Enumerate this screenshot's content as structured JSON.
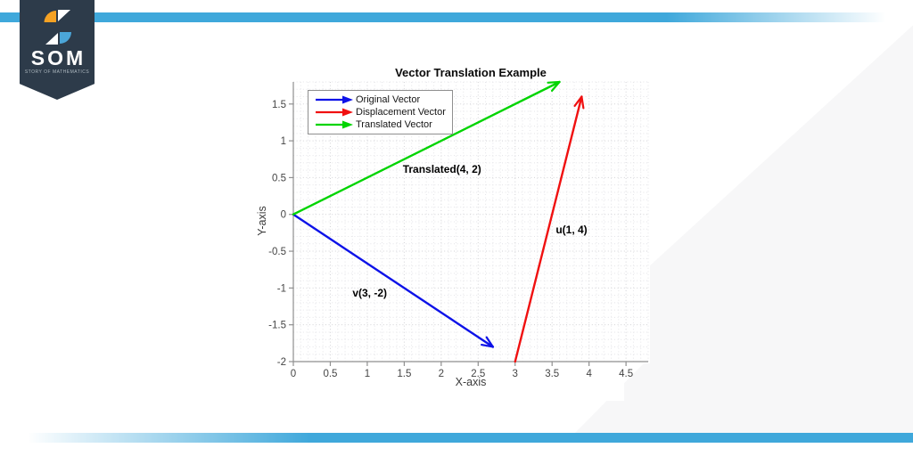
{
  "branding": {
    "site_name": "SOM",
    "tagline": "STORY OF MATHEMATICS",
    "colors": {
      "banner": "#2d3b4a",
      "pinwheel_orange": "#f5a224",
      "pinwheel_blue": "#4ba6d9",
      "stripe_blue": "#3fa8db",
      "background_accent": "#f7f7f8"
    }
  },
  "chart_data": {
    "type": "quiver",
    "title": "Vector Translation Example",
    "xlabel": "X-axis",
    "ylabel": "Y-axis",
    "xlim": [
      0,
      4.8
    ],
    "ylim": [
      -2,
      1.8
    ],
    "xticks": [
      "0",
      "0.5",
      "1",
      "1.5",
      "2",
      "2.5",
      "3",
      "3.5",
      "4",
      "4.5"
    ],
    "yticks": [
      "-2",
      "-1.5",
      "-1",
      "-0.5",
      "0",
      "0.5",
      "1",
      "1.5"
    ],
    "grid": {
      "style": "dotted",
      "minor_step": 0.1,
      "major_step": 0.5,
      "minor_color": "#e4e4e8",
      "major_color": "#d2d2d6"
    },
    "axis_color": "#8f8f8f",
    "tick_label_color": "#454545",
    "arrow_draw_scale": 0.9,
    "vectors": [
      {
        "name": "Original Vector",
        "color": "#0d12e8",
        "origin": [
          0,
          0
        ],
        "components": [
          3,
          -2
        ],
        "label": "v(3, -2)",
        "label_anchor": [
          0.8,
          -0.985
        ]
      },
      {
        "name": "Displacement Vector",
        "color": "#f01010",
        "origin": [
          3,
          -2
        ],
        "components": [
          1,
          4
        ],
        "label": "u(1, 4)",
        "label_anchor": [
          3.55,
          -0.12
        ]
      },
      {
        "name": "Translated Vector",
        "color": "#00d400",
        "origin": [
          0,
          0
        ],
        "components": [
          4,
          2
        ],
        "label": "Translated(4, 2)",
        "label_anchor": [
          1.48,
          0.7
        ]
      }
    ],
    "legend": {
      "position": "northwest",
      "entries": [
        {
          "label": "Original Vector",
          "color": "#0d12e8"
        },
        {
          "label": "Displacement Vector",
          "color": "#f01010"
        },
        {
          "label": "Translated Vector",
          "color": "#00d400"
        }
      ]
    }
  }
}
